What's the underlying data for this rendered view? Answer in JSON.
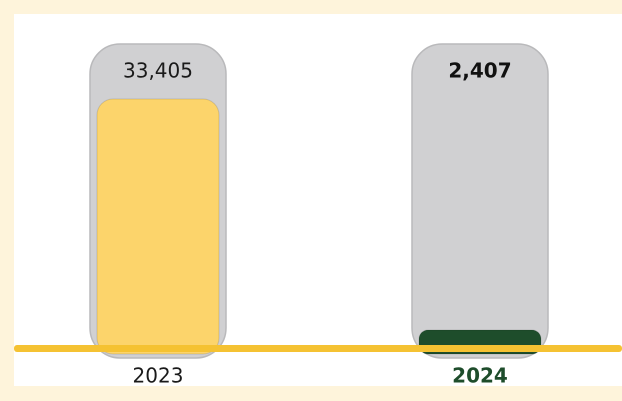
{
  "chart_data": {
    "type": "bar",
    "categories": [
      "2023",
      "2024"
    ],
    "values": [
      33405,
      2407
    ],
    "value_labels": [
      "33,405",
      "2,407"
    ],
    "colors": [
      "#fcd46b",
      "#1e4d2b"
    ]
  }
}
